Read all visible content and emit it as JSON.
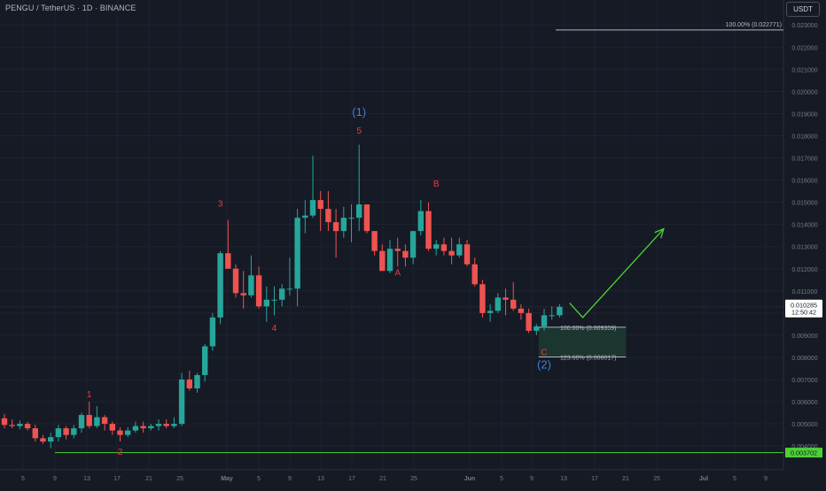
{
  "header": {
    "ticker": "PENGU / TetherUS · 1D · BINANCE",
    "currency": "USDT"
  },
  "chart_data": {
    "type": "candlestick",
    "symbol": "PENGU / TetherUS",
    "interval": "1D",
    "exchange": "BINANCE",
    "y_axis": {
      "range": [
        0.003,
        0.024
      ],
      "ticks": [
        "0.023000",
        "0.022000",
        "0.021000",
        "0.020000",
        "0.019000",
        "0.018000",
        "0.017000",
        "0.016000",
        "0.015000",
        "0.014000",
        "0.013000",
        "0.012000",
        "0.011000",
        "0.010000",
        "0.009000",
        "0.008000",
        "0.007000",
        "0.006000",
        "0.005000",
        "0.004000"
      ]
    },
    "x_axis": {
      "ticks": [
        "5",
        "9",
        "13",
        "17",
        "21",
        "25",
        "May",
        "5",
        "9",
        "13",
        "17",
        "21",
        "25",
        "Jun",
        "5",
        "9",
        "13",
        "17",
        "21",
        "25",
        "Jul",
        "5",
        "9"
      ]
    },
    "current_price": {
      "price": "0.010285",
      "countdown": "12:50:42"
    },
    "support_line": {
      "label": "0.003702",
      "value": 0.003702
    },
    "fib_levels": [
      {
        "label": "100.00% (0.022771)",
        "value": 0.022771
      },
      {
        "label": "100.00% (0.009359)",
        "value": 0.009359
      },
      {
        "label": "123.60% (0.008017)",
        "value": 0.008017
      }
    ],
    "wave_labels": [
      {
        "text": "1",
        "color": "#f23645",
        "date_index": 11,
        "price": 0.0062
      },
      {
        "text": "2",
        "color": "#f23645",
        "date_index": 15,
        "price": 0.0036
      },
      {
        "text": "3",
        "color": "#f23645",
        "date_index": 28,
        "price": 0.0148
      },
      {
        "text": "4",
        "color": "#f23645",
        "date_index": 35,
        "price": 0.0092
      },
      {
        "text": "(1)",
        "color": "#2962ff",
        "date_index": 46,
        "price": 0.0189
      },
      {
        "text": "5",
        "color": "#f23645",
        "date_index": 46,
        "price": 0.0181
      },
      {
        "text": "A",
        "color": "#f23645",
        "date_index": 51,
        "price": 0.0117
      },
      {
        "text": "B",
        "color": "#f23645",
        "date_index": 56,
        "price": 0.0157
      },
      {
        "text": "C",
        "color": "#f23645",
        "date_index": 70,
        "price": 0.0081
      },
      {
        "text": "(2)",
        "color": "#2962ff",
        "date_index": 70,
        "price": 0.0075
      }
    ],
    "candles": [
      [
        0.00525,
        0.00545,
        0.0048,
        0.00495
      ],
      [
        0.00495,
        0.0052,
        0.0048,
        0.0049
      ],
      [
        0.0049,
        0.00515,
        0.00475,
        0.005
      ],
      [
        0.005,
        0.0051,
        0.0047,
        0.0048
      ],
      [
        0.0048,
        0.00495,
        0.0042,
        0.00435
      ],
      [
        0.00435,
        0.0045,
        0.0041,
        0.0042
      ],
      [
        0.0042,
        0.0046,
        0.0039,
        0.0044
      ],
      [
        0.0044,
        0.00495,
        0.0042,
        0.0048
      ],
      [
        0.0048,
        0.0049,
        0.0043,
        0.0045
      ],
      [
        0.0045,
        0.00495,
        0.00435,
        0.0048
      ],
      [
        0.0048,
        0.0055,
        0.0046,
        0.0054
      ],
      [
        0.0054,
        0.006,
        0.0048,
        0.0049
      ],
      [
        0.0049,
        0.0058,
        0.0048,
        0.0053
      ],
      [
        0.0053,
        0.0054,
        0.0047,
        0.005
      ],
      [
        0.005,
        0.0051,
        0.0045,
        0.0047
      ],
      [
        0.0047,
        0.00485,
        0.0042,
        0.0045
      ],
      [
        0.0045,
        0.00485,
        0.0044,
        0.0047
      ],
      [
        0.0047,
        0.0051,
        0.0046,
        0.0049
      ],
      [
        0.0049,
        0.0051,
        0.0046,
        0.0048
      ],
      [
        0.0048,
        0.005,
        0.0047,
        0.0049
      ],
      [
        0.0049,
        0.0052,
        0.0047,
        0.005
      ],
      [
        0.005,
        0.0052,
        0.0048,
        0.0049
      ],
      [
        0.0049,
        0.0053,
        0.0048,
        0.005
      ],
      [
        0.005,
        0.0073,
        0.0049,
        0.007
      ],
      [
        0.007,
        0.0074,
        0.0065,
        0.0066
      ],
      [
        0.0066,
        0.0073,
        0.0064,
        0.0072
      ],
      [
        0.0072,
        0.0086,
        0.0069,
        0.0085
      ],
      [
        0.0085,
        0.01,
        0.0083,
        0.0098
      ],
      [
        0.0098,
        0.0128,
        0.0095,
        0.0127
      ],
      [
        0.0127,
        0.0142,
        0.012,
        0.012
      ],
      [
        0.012,
        0.0122,
        0.0107,
        0.0109
      ],
      [
        0.0109,
        0.0119,
        0.0102,
        0.0108
      ],
      [
        0.0108,
        0.0126,
        0.0107,
        0.0117
      ],
      [
        0.0117,
        0.0121,
        0.0102,
        0.0103
      ],
      [
        0.0103,
        0.0112,
        0.0096,
        0.0106
      ],
      [
        0.0106,
        0.0112,
        0.0099,
        0.0106
      ],
      [
        0.0106,
        0.0113,
        0.0103,
        0.0111
      ],
      [
        0.0111,
        0.0125,
        0.0108,
        0.0111
      ],
      [
        0.0111,
        0.0147,
        0.0103,
        0.0143
      ],
      [
        0.0143,
        0.0151,
        0.0136,
        0.0144
      ],
      [
        0.0144,
        0.0171,
        0.0143,
        0.0151
      ],
      [
        0.0151,
        0.0155,
        0.0137,
        0.0147
      ],
      [
        0.0147,
        0.0155,
        0.0137,
        0.0141
      ],
      [
        0.0141,
        0.0147,
        0.0125,
        0.0137
      ],
      [
        0.0137,
        0.0148,
        0.0134,
        0.0143
      ],
      [
        0.0143,
        0.0149,
        0.0132,
        0.0143
      ],
      [
        0.0143,
        0.0176,
        0.0137,
        0.0149
      ],
      [
        0.0149,
        0.0149,
        0.0136,
        0.0137
      ],
      [
        0.0137,
        0.0137,
        0.0126,
        0.0128
      ],
      [
        0.0128,
        0.0131,
        0.012,
        0.0119
      ],
      [
        0.0119,
        0.0133,
        0.0118,
        0.0129
      ],
      [
        0.0129,
        0.0134,
        0.0121,
        0.0128
      ],
      [
        0.0128,
        0.0131,
        0.0121,
        0.0125
      ],
      [
        0.0125,
        0.0136,
        0.0122,
        0.0137
      ],
      [
        0.0137,
        0.0151,
        0.0135,
        0.0146
      ],
      [
        0.0146,
        0.015,
        0.0128,
        0.0129
      ],
      [
        0.0129,
        0.0133,
        0.0126,
        0.0131
      ],
      [
        0.0131,
        0.0134,
        0.0126,
        0.0128
      ],
      [
        0.0128,
        0.0134,
        0.0122,
        0.0126
      ],
      [
        0.0126,
        0.0134,
        0.0125,
        0.0131
      ],
      [
        0.0131,
        0.0133,
        0.0121,
        0.0122
      ],
      [
        0.0122,
        0.0125,
        0.0112,
        0.0113
      ],
      [
        0.0113,
        0.0115,
        0.0098,
        0.01
      ],
      [
        0.01,
        0.0104,
        0.0096,
        0.0101
      ],
      [
        0.0101,
        0.0109,
        0.01,
        0.0107
      ],
      [
        0.0107,
        0.0111,
        0.0099,
        0.0106
      ],
      [
        0.0106,
        0.0114,
        0.0101,
        0.0102
      ],
      [
        0.0102,
        0.0104,
        0.0097,
        0.01
      ],
      [
        0.01,
        0.0102,
        0.0091,
        0.0092
      ],
      [
        0.0092,
        0.0095,
        0.009,
        0.0094
      ],
      [
        0.0094,
        0.0102,
        0.0092,
        0.0099
      ],
      [
        0.0099,
        0.0103,
        0.0097,
        0.0099
      ],
      [
        0.0099,
        0.0104,
        0.0098,
        0.01028
      ]
    ],
    "projection": {
      "color": "#4cd137",
      "points": [
        {
          "date_index": 73.3,
          "price": 0.01045
        },
        {
          "date_index": 75.0,
          "price": 0.0098
        },
        {
          "date_index": 85.5,
          "price": 0.0138
        }
      ]
    },
    "target_zone": {
      "date_start": 69.3,
      "date_end": 80.6,
      "top": 0.009359,
      "bottom": 0.008017
    },
    "colors": {
      "background": "#161a25",
      "up": "#26a69a",
      "down": "#ef5350",
      "grid": "#1f2330",
      "axis_text": "#787b86",
      "support_line": "#4cd137",
      "fib_line": "#b2b5be",
      "zone_fill": "#1c3b31"
    }
  }
}
